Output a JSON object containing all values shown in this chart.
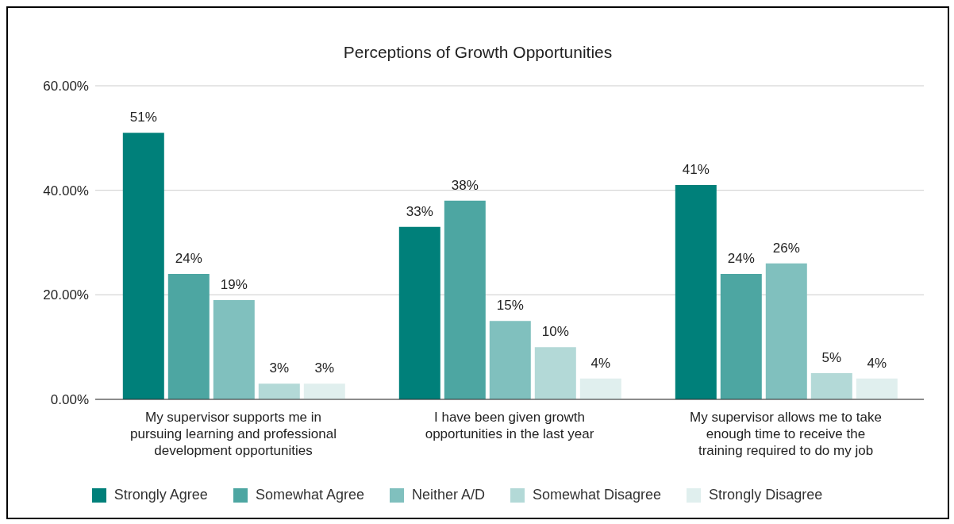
{
  "chart_data": {
    "type": "bar",
    "title": "Perceptions of Growth Opportunities",
    "categories": [
      "My supervisor supports me in pursuing learning and professional development opportunities",
      "I have been given growth opportunities in the last year",
      "My supervisor allows me to take enough time to receive the training required to do my job"
    ],
    "series": [
      {
        "name": "Strongly Agree",
        "color": "#00807a",
        "values": [
          51,
          33,
          41
        ],
        "value_labels": [
          "51%",
          "33%",
          "41%"
        ]
      },
      {
        "name": "Somewhat Agree",
        "color": "#4da6a2",
        "values": [
          24,
          38,
          24
        ],
        "value_labels": [
          "24%",
          "38%",
          "24%"
        ]
      },
      {
        "name": "Neither A/D",
        "color": "#80c0be",
        "values": [
          19,
          15,
          26
        ],
        "value_labels": [
          "19%",
          "15%",
          "26%"
        ]
      },
      {
        "name": "Somewhat Disagree",
        "color": "#b3d9d7",
        "values": [
          3,
          10,
          5
        ],
        "value_labels": [
          "3%",
          "10%",
          "5%"
        ]
      },
      {
        "name": "Strongly Disagree",
        "color": "#e0efee",
        "values": [
          3,
          4,
          4
        ],
        "value_labels": [
          "3%",
          "4%",
          "4%"
        ]
      }
    ],
    "ylim": [
      0,
      60
    ],
    "yticks": [
      {
        "value": 0,
        "label": "0.00%"
      },
      {
        "value": 20,
        "label": "20.00%"
      },
      {
        "value": 40,
        "label": "40.00%"
      },
      {
        "value": 60,
        "label": "60.00%"
      }
    ],
    "grid": "y",
    "legend": "bottom"
  }
}
